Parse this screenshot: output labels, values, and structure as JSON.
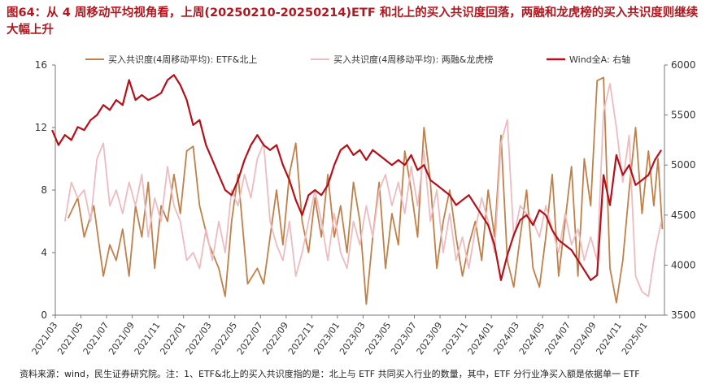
{
  "header": {
    "title": "图64：从 4 周移动平均视角看，上周(20250210-20250214)ETF 和北上的买入共识度回落，两融和龙虎榜的买入共识度则继续大幅上升"
  },
  "footer": {
    "source": "资料来源：wind，民生证券研究院。注：1、ETF&北上的买入共识度指的是：北上与 ETF 共同买入行业的数量，其中，ETF 分行业净买入额是依据单一 ETF"
  },
  "chart_data": {
    "type": "line",
    "title": "",
    "xlabel": "",
    "ylabel": "",
    "ylim": [
      0,
      16
    ],
    "y_ticks": [
      0,
      4,
      8,
      12,
      16
    ],
    "y2lim": [
      3500,
      6000
    ],
    "y2_ticks": [
      3500,
      4000,
      4500,
      5000,
      5500,
      6000
    ],
    "grid": false,
    "legend_position": "top",
    "x_range": [
      "2021/03",
      "2025/02"
    ],
    "x_ticks": [
      "2021/03",
      "2021/05",
      "2021/07",
      "2021/09",
      "2021/11",
      "2022/01",
      "2022/03",
      "2022/05",
      "2022/07",
      "2022/09",
      "2022/11",
      "2023/01",
      "2023/03",
      "2023/05",
      "2023/07",
      "2023/09",
      "2023/11",
      "2024/01",
      "2024/03",
      "2024/05",
      "2024/07",
      "2024/09",
      "2024/11",
      "2025/01"
    ],
    "series": [
      {
        "name": "买入共识度(4周移动平均): ETF&北上",
        "axis": "left",
        "color": "#c0804a",
        "points": [
          [
            "2021/04",
            6.2
          ],
          [
            "2021/05",
            7.5
          ],
          [
            "2021/05",
            5.0
          ],
          [
            "2021/06",
            7.0
          ],
          [
            "2021/07",
            2.5
          ],
          [
            "2021/07",
            4.5
          ],
          [
            "2021/08",
            3.5
          ],
          [
            "2021/08",
            5.5
          ],
          [
            "2021/09",
            2.5
          ],
          [
            "2021/09",
            7.0
          ],
          [
            "2021/10",
            5.0
          ],
          [
            "2021/10",
            8.5
          ],
          [
            "2021/11",
            3.0
          ],
          [
            "2021/11",
            7.0
          ],
          [
            "2021/12",
            6.0
          ],
          [
            "2021/12",
            9.0
          ],
          [
            "2022/01",
            6.5
          ],
          [
            "2022/01",
            10.5
          ],
          [
            "2022/02",
            10.8
          ],
          [
            "2022/02",
            7.0
          ],
          [
            "2022/03",
            4.5
          ],
          [
            "2022/04",
            3.0
          ],
          [
            "2022/04",
            1.2
          ],
          [
            "2022/05",
            6.0
          ],
          [
            "2022/05",
            9.0
          ],
          [
            "2022/06",
            2.0
          ],
          [
            "2022/07",
            3.0
          ],
          [
            "2022/07",
            2.0
          ],
          [
            "2022/08",
            5.0
          ],
          [
            "2022/08",
            8.0
          ],
          [
            "2022/09",
            4.5
          ],
          [
            "2022/09",
            9.0
          ],
          [
            "2022/10",
            11.0
          ],
          [
            "2022/10",
            6.0
          ],
          [
            "2022/11",
            4.0
          ],
          [
            "2022/11",
            7.5
          ],
          [
            "2022/12",
            5.0
          ],
          [
            "2022/12",
            9.0
          ],
          [
            "2023/01",
            5.0
          ],
          [
            "2023/01",
            7.0
          ],
          [
            "2023/02",
            4.0
          ],
          [
            "2023/02",
            8.5
          ],
          [
            "2023/03",
            6.0
          ],
          [
            "2023/03",
            0.7
          ],
          [
            "2023/04",
            5.0
          ],
          [
            "2023/04",
            8.5
          ],
          [
            "2023/05",
            3.0
          ],
          [
            "2023/05",
            6.5
          ],
          [
            "2023/06",
            4.5
          ],
          [
            "2023/06",
            10.5
          ],
          [
            "2023/07",
            8.0
          ],
          [
            "2023/07",
            5.0
          ],
          [
            "2023/08",
            12.0
          ],
          [
            "2023/08",
            8.5
          ],
          [
            "2023/09",
            3.0
          ],
          [
            "2023/09",
            6.0
          ],
          [
            "2023/10",
            8.0
          ],
          [
            "2023/10",
            5.0
          ],
          [
            "2023/11",
            2.5
          ],
          [
            "2023/11",
            4.5
          ],
          [
            "2023/12",
            6.0
          ],
          [
            "2023/12",
            3.5
          ],
          [
            "2024/01",
            8.0
          ],
          [
            "2024/01",
            5.0
          ],
          [
            "2024/02",
            11.5
          ],
          [
            "2024/02",
            3.5
          ],
          [
            "2024/03",
            1.8
          ],
          [
            "2024/03",
            5.0
          ],
          [
            "2024/04",
            8.0
          ],
          [
            "2024/04",
            3.0
          ],
          [
            "2024/05",
            1.8
          ],
          [
            "2024/05",
            5.0
          ],
          [
            "2024/06",
            9.0
          ],
          [
            "2024/06",
            2.5
          ],
          [
            "2024/07",
            6.0
          ],
          [
            "2024/07",
            9.5
          ],
          [
            "2024/08",
            2.5
          ],
          [
            "2024/08",
            10.0
          ],
          [
            "2024/09",
            7.0
          ],
          [
            "2024/09",
            15.0
          ],
          [
            "2024/10",
            15.2
          ],
          [
            "2024/10",
            3.0
          ],
          [
            "2024/11",
            0.8
          ],
          [
            "2024/11",
            3.5
          ],
          [
            "2024/12",
            8.0
          ],
          [
            "2024/12",
            12.0
          ],
          [
            "2025/01",
            6.5
          ],
          [
            "2025/01",
            10.5
          ],
          [
            "2025/02",
            7.0
          ],
          [
            "2025/02",
            10.0
          ],
          [
            "2025/02",
            5.5
          ]
        ]
      },
      {
        "name": "买入共识度(4周移动平均): 两融&龙虎榜",
        "axis": "left",
        "color": "#edbcc0",
        "points": [
          [
            "2021/04",
            6.0
          ],
          [
            "2021/04",
            8.5
          ],
          [
            "2021/05",
            7.5
          ],
          [
            "2021/05",
            8.0
          ],
          [
            "2021/06",
            6.0
          ],
          [
            "2021/06",
            10.0
          ],
          [
            "2021/07",
            11.0
          ],
          [
            "2021/07",
            7.0
          ],
          [
            "2021/08",
            8.0
          ],
          [
            "2021/08",
            6.5
          ],
          [
            "2021/09",
            8.5
          ],
          [
            "2021/09",
            7.0
          ],
          [
            "2021/10",
            9.0
          ],
          [
            "2021/10",
            5.0
          ],
          [
            "2021/11",
            7.5
          ],
          [
            "2021/11",
            6.0
          ],
          [
            "2021/12",
            9.5
          ],
          [
            "2021/12",
            7.0
          ],
          [
            "2022/01",
            6.0
          ],
          [
            "2022/01",
            3.5
          ],
          [
            "2022/02",
            4.0
          ],
          [
            "2022/02",
            3.0
          ],
          [
            "2022/03",
            5.5
          ],
          [
            "2022/03",
            3.5
          ],
          [
            "2022/04",
            6.0
          ],
          [
            "2022/04",
            4.0
          ],
          [
            "2022/05",
            8.0
          ],
          [
            "2022/05",
            7.0
          ],
          [
            "2022/06",
            9.0
          ],
          [
            "2022/06",
            7.5
          ],
          [
            "2022/07",
            10.0
          ],
          [
            "2022/07",
            11.0
          ],
          [
            "2022/08",
            6.0
          ],
          [
            "2022/08",
            4.5
          ],
          [
            "2022/09",
            3.5
          ],
          [
            "2022/09",
            6.0
          ],
          [
            "2022/10",
            2.5
          ],
          [
            "2022/10",
            4.0
          ],
          [
            "2022/11",
            6.0
          ],
          [
            "2022/11",
            8.0
          ],
          [
            "2022/12",
            6.0
          ],
          [
            "2022/12",
            3.5
          ],
          [
            "2023/01",
            6.5
          ],
          [
            "2023/01",
            4.0
          ],
          [
            "2023/02",
            3.0
          ],
          [
            "2023/02",
            6.0
          ],
          [
            "2023/03",
            4.5
          ],
          [
            "2023/03",
            7.0
          ],
          [
            "2023/04",
            5.0
          ],
          [
            "2023/04",
            8.0
          ],
          [
            "2023/05",
            9.0
          ],
          [
            "2023/05",
            7.0
          ],
          [
            "2023/06",
            8.5
          ],
          [
            "2023/06",
            6.5
          ],
          [
            "2023/07",
            9.5
          ],
          [
            "2023/07",
            7.0
          ],
          [
            "2023/08",
            10.5
          ],
          [
            "2023/08",
            6.0
          ],
          [
            "2023/09",
            8.0
          ],
          [
            "2023/09",
            4.0
          ],
          [
            "2023/10",
            6.5
          ],
          [
            "2023/10",
            3.5
          ],
          [
            "2023/11",
            5.0
          ],
          [
            "2023/11",
            3.0
          ],
          [
            "2023/12",
            5.5
          ],
          [
            "2023/12",
            7.5
          ],
          [
            "2024/01",
            6.0
          ],
          [
            "2024/01",
            4.0
          ],
          [
            "2024/02",
            11.0
          ],
          [
            "2024/02",
            12.5
          ],
          [
            "2024/03",
            5.0
          ],
          [
            "2024/03",
            7.0
          ],
          [
            "2024/04",
            6.5
          ],
          [
            "2024/04",
            6.0
          ],
          [
            "2024/05",
            5.0
          ],
          [
            "2024/05",
            7.0
          ],
          [
            "2024/06",
            5.5
          ],
          [
            "2024/06",
            4.0
          ],
          [
            "2024/07",
            6.5
          ],
          [
            "2024/07",
            4.5
          ],
          [
            "2024/08",
            5.5
          ],
          [
            "2024/08",
            3.5
          ],
          [
            "2024/09",
            5.0
          ],
          [
            "2024/09",
            3.5
          ],
          [
            "2024/10",
            13.0
          ],
          [
            "2024/10",
            14.8
          ],
          [
            "2024/11",
            12.0
          ],
          [
            "2024/11",
            8.5
          ],
          [
            "2024/12",
            11.5
          ],
          [
            "2024/12",
            2.5
          ],
          [
            "2025/01",
            1.5
          ],
          [
            "2025/01",
            1.2
          ],
          [
            "2025/02",
            4.0
          ],
          [
            "2025/02",
            6.0
          ]
        ]
      },
      {
        "name": "Wind全A: 右轴",
        "axis": "right",
        "color": "#b5101a",
        "points": [
          [
            "2021/03",
            5350
          ],
          [
            "2021/03",
            5200
          ],
          [
            "2021/04",
            5300
          ],
          [
            "2021/04",
            5250
          ],
          [
            "2021/05",
            5380
          ],
          [
            "2021/05",
            5350
          ],
          [
            "2021/06",
            5450
          ],
          [
            "2021/06",
            5500
          ],
          [
            "2021/07",
            5600
          ],
          [
            "2021/07",
            5550
          ],
          [
            "2021/08",
            5650
          ],
          [
            "2021/08",
            5600
          ],
          [
            "2021/09",
            5850
          ],
          [
            "2021/09",
            5650
          ],
          [
            "2021/10",
            5700
          ],
          [
            "2021/10",
            5650
          ],
          [
            "2021/11",
            5680
          ],
          [
            "2021/11",
            5720
          ],
          [
            "2021/12",
            5850
          ],
          [
            "2021/12",
            5900
          ],
          [
            "2022/01",
            5800
          ],
          [
            "2022/01",
            5650
          ],
          [
            "2022/02",
            5400
          ],
          [
            "2022/02",
            5450
          ],
          [
            "2022/03",
            5200
          ],
          [
            "2022/03",
            5050
          ],
          [
            "2022/04",
            4900
          ],
          [
            "2022/04",
            4750
          ],
          [
            "2022/05",
            4700
          ],
          [
            "2022/05",
            4850
          ],
          [
            "2022/06",
            5050
          ],
          [
            "2022/06",
            5200
          ],
          [
            "2022/07",
            5300
          ],
          [
            "2022/07",
            5200
          ],
          [
            "2022/08",
            5150
          ],
          [
            "2022/08",
            5200
          ],
          [
            "2022/09",
            5000
          ],
          [
            "2022/09",
            4850
          ],
          [
            "2022/10",
            4650
          ],
          [
            "2022/10",
            4500
          ],
          [
            "2022/11",
            4700
          ],
          [
            "2022/11",
            4750
          ],
          [
            "2022/12",
            4700
          ],
          [
            "2022/12",
            4800
          ],
          [
            "2023/01",
            5000
          ],
          [
            "2023/01",
            5150
          ],
          [
            "2023/02",
            5200
          ],
          [
            "2023/02",
            5100
          ],
          [
            "2023/03",
            5150
          ],
          [
            "2023/03",
            5050
          ],
          [
            "2023/04",
            5150
          ],
          [
            "2023/04",
            5100
          ],
          [
            "2023/05",
            5050
          ],
          [
            "2023/05",
            5000
          ],
          [
            "2023/06",
            5050
          ],
          [
            "2023/06",
            5000
          ],
          [
            "2023/07",
            5100
          ],
          [
            "2023/07",
            4950
          ],
          [
            "2023/08",
            5000
          ],
          [
            "2023/08",
            4850
          ],
          [
            "2023/09",
            4800
          ],
          [
            "2023/09",
            4750
          ],
          [
            "2023/10",
            4700
          ],
          [
            "2023/10",
            4600
          ],
          [
            "2023/11",
            4650
          ],
          [
            "2023/11",
            4700
          ],
          [
            "2023/12",
            4600
          ],
          [
            "2023/12",
            4500
          ],
          [
            "2024/01",
            4400
          ],
          [
            "2024/01",
            4200
          ],
          [
            "2024/02",
            3850
          ],
          [
            "2024/02",
            4100
          ],
          [
            "2024/03",
            4300
          ],
          [
            "2024/03",
            4450
          ],
          [
            "2024/04",
            4500
          ],
          [
            "2024/04",
            4400
          ],
          [
            "2024/05",
            4550
          ],
          [
            "2024/05",
            4500
          ],
          [
            "2024/06",
            4350
          ],
          [
            "2024/06",
            4250
          ],
          [
            "2024/07",
            4200
          ],
          [
            "2024/07",
            4150
          ],
          [
            "2024/08",
            4050
          ],
          [
            "2024/08",
            3950
          ],
          [
            "2024/09",
            3850
          ],
          [
            "2024/09",
            3900
          ],
          [
            "2024/10",
            4900
          ],
          [
            "2024/10",
            4600
          ],
          [
            "2024/11",
            5100
          ],
          [
            "2024/11",
            4900
          ],
          [
            "2024/12",
            5000
          ],
          [
            "2024/12",
            4800
          ],
          [
            "2025/01",
            4850
          ],
          [
            "2025/01",
            4900
          ],
          [
            "2025/02",
            5050
          ],
          [
            "2025/02",
            5150
          ]
        ]
      }
    ]
  }
}
